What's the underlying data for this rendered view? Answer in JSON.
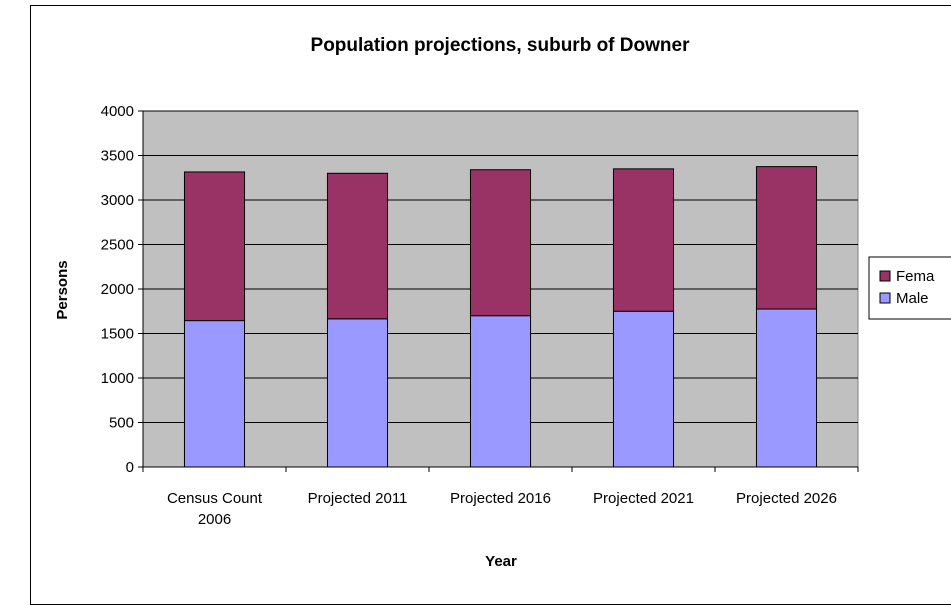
{
  "chart_data": {
    "type": "bar",
    "stacked": true,
    "title": "Population projections, suburb of Downer",
    "xlabel": "Year",
    "ylabel": "Persons",
    "ylim": [
      0,
      4000
    ],
    "yticks": [
      0,
      500,
      1000,
      1500,
      2000,
      2500,
      3000,
      3500,
      4000
    ],
    "grid": true,
    "legend_position": "right",
    "categories": [
      [
        "Census Count",
        "2006"
      ],
      [
        "Projected 2011"
      ],
      [
        "Projected 2016"
      ],
      [
        "Projected 2021"
      ],
      [
        "Projected 2026"
      ]
    ],
    "series": [
      {
        "name": "Male",
        "color": "#9999ff",
        "values": [
          1645,
          1665,
          1700,
          1750,
          1775
        ]
      },
      {
        "name": "Female",
        "color": "#993366",
        "values": [
          1670,
          1635,
          1640,
          1600,
          1600
        ]
      }
    ],
    "legend": [
      "Fema",
      "Male"
    ],
    "plot_background": "#c0c0c0"
  }
}
